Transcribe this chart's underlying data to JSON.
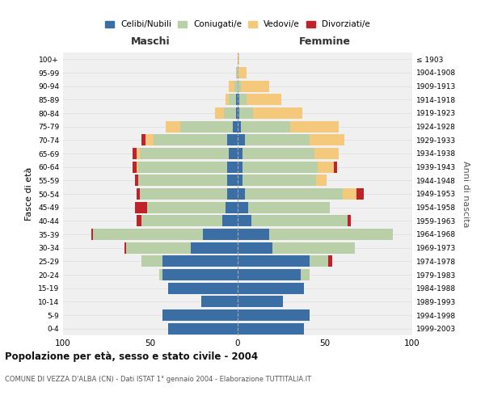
{
  "age_groups": [
    "0-4",
    "5-9",
    "10-14",
    "15-19",
    "20-24",
    "25-29",
    "30-34",
    "35-39",
    "40-44",
    "45-49",
    "50-54",
    "55-59",
    "60-64",
    "65-69",
    "70-74",
    "75-79",
    "80-84",
    "85-89",
    "90-94",
    "95-99",
    "100+"
  ],
  "birth_years": [
    "1999-2003",
    "1994-1998",
    "1989-1993",
    "1984-1988",
    "1979-1983",
    "1974-1978",
    "1969-1973",
    "1964-1968",
    "1959-1963",
    "1954-1958",
    "1949-1953",
    "1944-1948",
    "1939-1943",
    "1934-1938",
    "1929-1933",
    "1924-1928",
    "1919-1923",
    "1914-1918",
    "1909-1913",
    "1904-1908",
    "≤ 1903"
  ],
  "colors": {
    "celibi": "#3A6EA5",
    "coniugati": "#B8CFA8",
    "vedovi": "#F5C97C",
    "divorziati": "#C0222A"
  },
  "males": {
    "celibi": [
      40,
      43,
      21,
      40,
      43,
      43,
      27,
      20,
      9,
      7,
      6,
      6,
      6,
      5,
      6,
      3,
      1,
      1,
      0,
      0,
      0
    ],
    "coniugati": [
      0,
      0,
      0,
      0,
      2,
      12,
      37,
      63,
      46,
      45,
      50,
      51,
      51,
      51,
      42,
      30,
      7,
      4,
      2,
      1,
      0
    ],
    "vedovi": [
      0,
      0,
      0,
      0,
      0,
      0,
      0,
      0,
      0,
      0,
      0,
      0,
      1,
      2,
      5,
      8,
      5,
      2,
      3,
      0,
      0
    ],
    "divorziati": [
      0,
      0,
      0,
      0,
      0,
      0,
      1,
      1,
      3,
      7,
      2,
      2,
      2,
      2,
      2,
      0,
      0,
      0,
      0,
      0,
      0
    ]
  },
  "females": {
    "celibi": [
      38,
      41,
      26,
      38,
      36,
      41,
      20,
      18,
      8,
      6,
      4,
      3,
      3,
      3,
      4,
      2,
      1,
      1,
      0,
      0,
      0
    ],
    "coniugati": [
      0,
      0,
      0,
      0,
      5,
      11,
      47,
      71,
      55,
      47,
      56,
      42,
      43,
      41,
      37,
      28,
      8,
      4,
      2,
      0,
      0
    ],
    "vedovi": [
      0,
      0,
      0,
      0,
      0,
      0,
      0,
      0,
      0,
      0,
      8,
      6,
      9,
      14,
      20,
      28,
      28,
      20,
      16,
      5,
      1
    ],
    "divorziati": [
      0,
      0,
      0,
      0,
      0,
      2,
      0,
      0,
      2,
      0,
      4,
      0,
      2,
      0,
      0,
      0,
      0,
      0,
      0,
      0,
      0
    ]
  },
  "xlim": 100,
  "title": "Popolazione per età, sesso e stato civile - 2004",
  "subtitle": "COMUNE DI VEZZA D'ALBA (CN) - Dati ISTAT 1° gennaio 2004 - Elaborazione TUTTITALIA.IT",
  "xlabel_left": "Maschi",
  "xlabel_right": "Femmine",
  "ylabel_left": "Fasce di età",
  "ylabel_right": "Anni di nascita",
  "legend_labels": [
    "Celibi/Nubili",
    "Coniugati/e",
    "Vedovi/e",
    "Divorziati/e"
  ],
  "bg_color": "#ffffff",
  "plot_bg": "#f0f0f0",
  "grid_color": "#dddddd"
}
